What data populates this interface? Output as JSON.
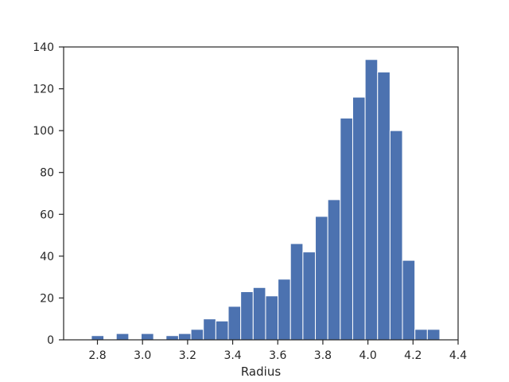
{
  "chart_data": {
    "type": "bar",
    "histogram": true,
    "bar_color": "#4c72b0",
    "bin_edges": [
      2.718,
      2.7732,
      2.8284,
      2.8836,
      2.9388,
      2.994,
      3.0492,
      3.1044,
      3.1596,
      3.2148,
      3.27,
      3.3252,
      3.3804,
      3.4356,
      3.4908,
      3.546,
      3.6012,
      3.6564,
      3.7116,
      3.7668,
      3.822,
      3.8772,
      3.9324,
      3.9876,
      4.0428,
      4.098,
      4.1532,
      4.2084,
      4.2636,
      4.3188
    ],
    "values": [
      0,
      2,
      0,
      3,
      0,
      3,
      0,
      2,
      3,
      5,
      10,
      9,
      16,
      23,
      25,
      21,
      29,
      46,
      42,
      59,
      67,
      106,
      116,
      134,
      128,
      100,
      38,
      5,
      5
    ],
    "xlabel": "Radius",
    "ylabel": "",
    "xlim": [
      2.65,
      4.4
    ],
    "ylim": [
      0,
      140
    ],
    "xticks": [
      2.8,
      3.0,
      3.2,
      3.4,
      3.6,
      3.8,
      4.0,
      4.2,
      4.4
    ],
    "xtick_labels": [
      "2.8",
      "3.0",
      "3.2",
      "3.4",
      "3.6",
      "3.8",
      "4.0",
      "4.2",
      "4.4"
    ],
    "yticks": [
      0,
      20,
      40,
      60,
      80,
      100,
      120,
      140
    ],
    "ytick_labels": [
      "0",
      "20",
      "40",
      "60",
      "80",
      "100",
      "120",
      "140"
    ],
    "grid": false
  }
}
